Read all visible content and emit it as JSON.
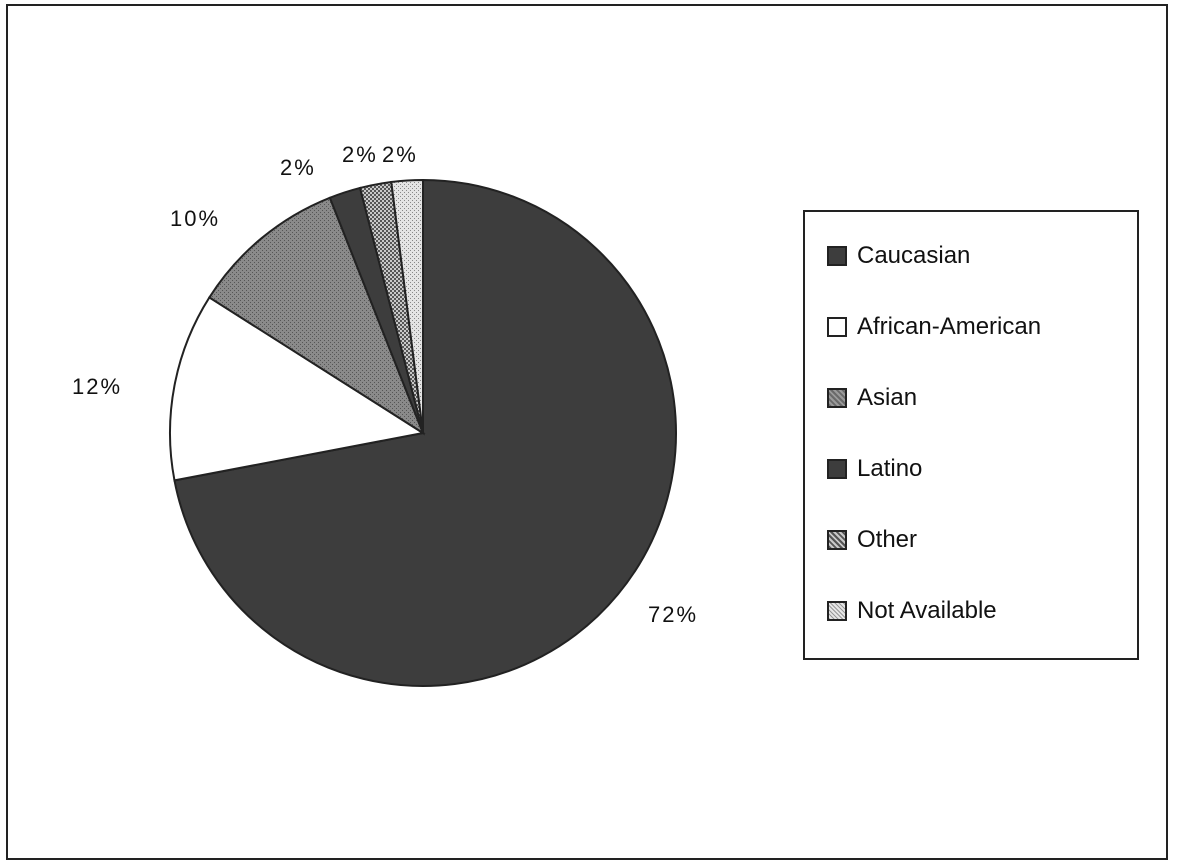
{
  "chart_data": {
    "type": "pie",
    "title": "",
    "slices": [
      {
        "label": "Caucasian",
        "value": 72,
        "display": "72%",
        "color": "#3a3a3a"
      },
      {
        "label": "African-American",
        "value": 12,
        "display": "12%",
        "color": "#ffffff"
      },
      {
        "label": "Asian",
        "value": 10,
        "display": "10%",
        "color": "#7a7a7a"
      },
      {
        "label": "Latino",
        "value": 2,
        "display": "2%",
        "color": "#3a3a3a"
      },
      {
        "label": "Other",
        "value": 2,
        "display": "2%",
        "color": "#9a9a9a"
      },
      {
        "label": "Not Available",
        "value": 2,
        "display": "2%",
        "color": "#cfcfcf"
      }
    ],
    "legend_position": "right"
  }
}
